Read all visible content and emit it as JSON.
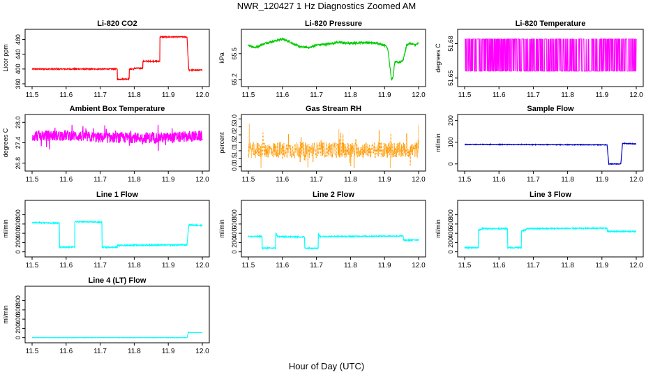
{
  "page": {
    "title": "NWR_120427  1 Hz Diagnostics Zoomed AM",
    "xlabel": "Hour of Day (UTC)"
  },
  "chart_data": [
    {
      "type": "line",
      "title": "Li-820 CO2",
      "ylabel": "Licor ppm",
      "color": "#ff0000",
      "xlim": [
        11.5,
        12.0
      ],
      "ylim": [
        360,
        500
      ],
      "xticks": [
        "11.5",
        "11.6",
        "11.7",
        "11.8",
        "11.9",
        "12.0"
      ],
      "yticks": [
        {
          "v": 360,
          "label": "360"
        },
        {
          "v": 400,
          "label": "400"
        },
        {
          "v": 440,
          "label": "440"
        },
        {
          "v": 480,
          "label": "480"
        }
      ],
      "noise": 1.5,
      "x": [
        11.5,
        11.75,
        11.75,
        11.76,
        11.76,
        11.785,
        11.785,
        11.8,
        11.8,
        11.825,
        11.825,
        11.84,
        11.84,
        11.875,
        11.875,
        11.955,
        11.955,
        11.96,
        11.96,
        12.0
      ],
      "y": [
        400,
        400,
        372,
        372,
        373,
        373,
        400,
        400,
        402,
        402,
        421,
        421,
        421,
        421,
        487,
        487,
        487,
        400,
        397,
        397
      ]
    },
    {
      "type": "line",
      "title": "Li-820 Pressure",
      "ylabel": "kPa",
      "color": "#00cc00",
      "xlim": [
        11.5,
        12.0
      ],
      "ylim": [
        65.15,
        65.75
      ],
      "xticks": [
        "11.5",
        "11.6",
        "11.7",
        "11.8",
        "11.9",
        "12.0"
      ],
      "yticks": [
        {
          "v": 65.2,
          "label": "65.2"
        },
        {
          "v": 65.5,
          "label": "65.5"
        }
      ],
      "noise": 0.012,
      "x": [
        11.5,
        11.52,
        11.55,
        11.57,
        11.6,
        11.62,
        11.65,
        11.68,
        11.7,
        11.73,
        11.76,
        11.8,
        11.84,
        11.88,
        11.905,
        11.91,
        11.92,
        11.925,
        11.93,
        11.945,
        11.955,
        11.965,
        11.975,
        11.99,
        12.0
      ],
      "y": [
        65.6,
        65.57,
        65.62,
        65.64,
        65.67,
        65.64,
        65.58,
        65.57,
        65.6,
        65.61,
        65.63,
        65.62,
        65.63,
        65.62,
        65.59,
        65.55,
        65.2,
        65.22,
        65.4,
        65.4,
        65.43,
        65.6,
        65.62,
        65.6,
        65.62
      ]
    },
    {
      "type": "line",
      "title": "Li-820 Temperature",
      "ylabel": "degrees C",
      "color": "#ff00ff",
      "xlim": [
        11.5,
        12.0
      ],
      "ylim": [
        51.645,
        51.69
      ],
      "xticks": [
        "11.5",
        "11.6",
        "11.7",
        "11.8",
        "11.9",
        "12.0"
      ],
      "yticks": [
        {
          "v": 51.65,
          "label": "51.65"
        },
        {
          "v": 51.68,
          "label": "51.68"
        }
      ],
      "digital": [
        51.656,
        51.684
      ],
      "lowfrac": 0.45,
      "x": [
        11.5,
        12.0
      ],
      "y": [
        51.684,
        51.684
      ]
    },
    {
      "type": "line",
      "title": "Ambient Box Temperature",
      "ylabel": "degrees C",
      "color": "#ff00ff",
      "xlim": [
        11.5,
        12.0
      ],
      "ylim": [
        26.65,
        28.15
      ],
      "xticks": [
        "11.5",
        "11.6",
        "11.7",
        "11.8",
        "11.9",
        "12.0"
      ],
      "yticks": [
        {
          "v": 26.8,
          "label": "26.8"
        },
        {
          "v": 27.4,
          "label": "27.4"
        },
        {
          "v": 28.0,
          "label": "28.0"
        }
      ],
      "noise": 0.16,
      "spikes": 0.35,
      "x": [
        11.5,
        11.6,
        11.7,
        11.8,
        11.9,
        12.0
      ],
      "y": [
        27.6,
        27.62,
        27.55,
        27.55,
        27.55,
        27.6
      ]
    },
    {
      "type": "line",
      "title": "Gas Stream RH",
      "ylabel": "percent",
      "color": "#ff9900",
      "xlim": [
        11.5,
        12.0
      ],
      "ylim": [
        -0.1,
        3.1
      ],
      "xticks": [
        "11.5",
        "11.6",
        "11.7",
        "11.8",
        "11.9",
        "12.0"
      ],
      "yticks": [
        {
          "v": 0.0,
          "label": "0.0"
        },
        {
          "v": 0.5,
          "label": "0.5"
        },
        {
          "v": 1.0,
          "label": "1.0"
        },
        {
          "v": 1.5,
          "label": "1.5"
        },
        {
          "v": 2.0,
          "label": "2.0"
        },
        {
          "v": 2.5,
          "label": "2.5"
        },
        {
          "v": 3.0,
          "label": "3.0"
        }
      ],
      "noise": 0.5,
      "spikes": 1.2,
      "dotted": true,
      "x": [
        11.5,
        12.0
      ],
      "y": [
        1.05,
        1.05
      ]
    },
    {
      "type": "line",
      "title": "Sample Flow",
      "ylabel": "ml/min",
      "color": "#0000cc",
      "xlim": [
        11.5,
        12.0
      ],
      "ylim": [
        -20,
        215
      ],
      "xticks": [
        "11.5",
        "11.6",
        "11.7",
        "11.8",
        "11.9",
        "12.0"
      ],
      "yticks": [
        {
          "v": 0,
          "label": "0"
        },
        {
          "v": 100,
          "label": "100"
        },
        {
          "v": 200,
          "label": "200"
        }
      ],
      "noise": 1.5,
      "x": [
        11.5,
        11.915,
        11.92,
        11.955,
        11.96,
        12.0
      ],
      "y": [
        90,
        88,
        0,
        0,
        95,
        92
      ]
    },
    {
      "type": "line",
      "title": "Line 1 Flow",
      "ylabel": "ml/min",
      "color": "#00ffff",
      "xlim": [
        11.5,
        12.0
      ],
      "ylim": [
        -50,
        1050
      ],
      "xticks": [
        "11.5",
        "11.6",
        "11.7",
        "11.8",
        "11.9",
        "12.0"
      ],
      "yticks": [
        {
          "v": 0,
          "label": "0"
        },
        {
          "v": 200,
          "label": "200"
        },
        {
          "v": 400,
          "label": "400"
        },
        {
          "v": 600,
          "label": "600"
        },
        {
          "v": 800,
          "label": "800"
        }
      ],
      "noise": 12,
      "x": [
        11.5,
        11.58,
        11.58,
        11.625,
        11.625,
        11.705,
        11.705,
        11.75,
        11.75,
        11.955,
        11.955,
        11.96,
        11.96,
        12.0
      ],
      "y": [
        630,
        620,
        100,
        100,
        650,
        640,
        100,
        100,
        140,
        150,
        150,
        560,
        580,
        570
      ]
    },
    {
      "type": "line",
      "title": "Line 2 Flow",
      "ylabel": "ml/min",
      "color": "#00ffff",
      "xlim": [
        11.5,
        12.0
      ],
      "ylim": [
        -50,
        1050
      ],
      "xticks": [
        "11.5",
        "11.6",
        "11.7",
        "11.8",
        "11.9",
        "12.0"
      ],
      "yticks": [
        {
          "v": 0,
          "label": "0"
        },
        {
          "v": 200,
          "label": "200"
        },
        {
          "v": 400,
          "label": "400"
        },
        {
          "v": 600,
          "label": "600"
        },
        {
          "v": 800,
          "label": "800"
        }
      ],
      "noise": 12,
      "x": [
        11.5,
        11.54,
        11.54,
        11.58,
        11.58,
        11.585,
        11.585,
        11.665,
        11.665,
        11.705,
        11.705,
        11.71,
        11.71,
        11.955,
        11.955,
        12.0
      ],
      "y": [
        330,
        330,
        80,
        80,
        420,
        340,
        330,
        320,
        80,
        80,
        400,
        330,
        330,
        340,
        250,
        260
      ]
    },
    {
      "type": "line",
      "title": "Line 3 Flow",
      "ylabel": "ml/min",
      "color": "#00ffff",
      "xlim": [
        11.5,
        12.0
      ],
      "ylim": [
        -50,
        1050
      ],
      "xticks": [
        "11.5",
        "11.6",
        "11.7",
        "11.8",
        "11.9",
        "12.0"
      ],
      "yticks": [
        {
          "v": 0,
          "label": "0"
        },
        {
          "v": 200,
          "label": "200"
        },
        {
          "v": 400,
          "label": "400"
        },
        {
          "v": 600,
          "label": "600"
        },
        {
          "v": 800,
          "label": "800"
        }
      ],
      "noise": 12,
      "x": [
        11.5,
        11.54,
        11.54,
        11.55,
        11.55,
        11.625,
        11.625,
        11.665,
        11.665,
        11.68,
        11.68,
        11.91,
        11.91,
        11.915,
        11.915,
        12.0
      ],
      "y": [
        90,
        90,
        460,
        490,
        500,
        500,
        90,
        90,
        450,
        480,
        500,
        510,
        510,
        510,
        440,
        440
      ]
    },
    {
      "type": "line",
      "title": "Line 4 (LT) Flow",
      "ylabel": "ml/min",
      "color": "#00ffff",
      "xlim": [
        11.5,
        12.0
      ],
      "ylim": [
        -50,
        1050
      ],
      "xticks": [
        "11.5",
        "11.6",
        "11.7",
        "11.8",
        "11.9",
        "12.0"
      ],
      "yticks": [
        {
          "v": 0,
          "label": "0"
        },
        {
          "v": 200,
          "label": "200"
        },
        {
          "v": 400,
          "label": "400"
        },
        {
          "v": 600,
          "label": "600"
        },
        {
          "v": 800,
          "label": "800"
        }
      ],
      "noise": 3,
      "x": [
        11.5,
        11.955,
        11.955,
        11.96,
        11.96,
        12.0
      ],
      "y": [
        0,
        0,
        0,
        130,
        110,
        110
      ]
    }
  ]
}
